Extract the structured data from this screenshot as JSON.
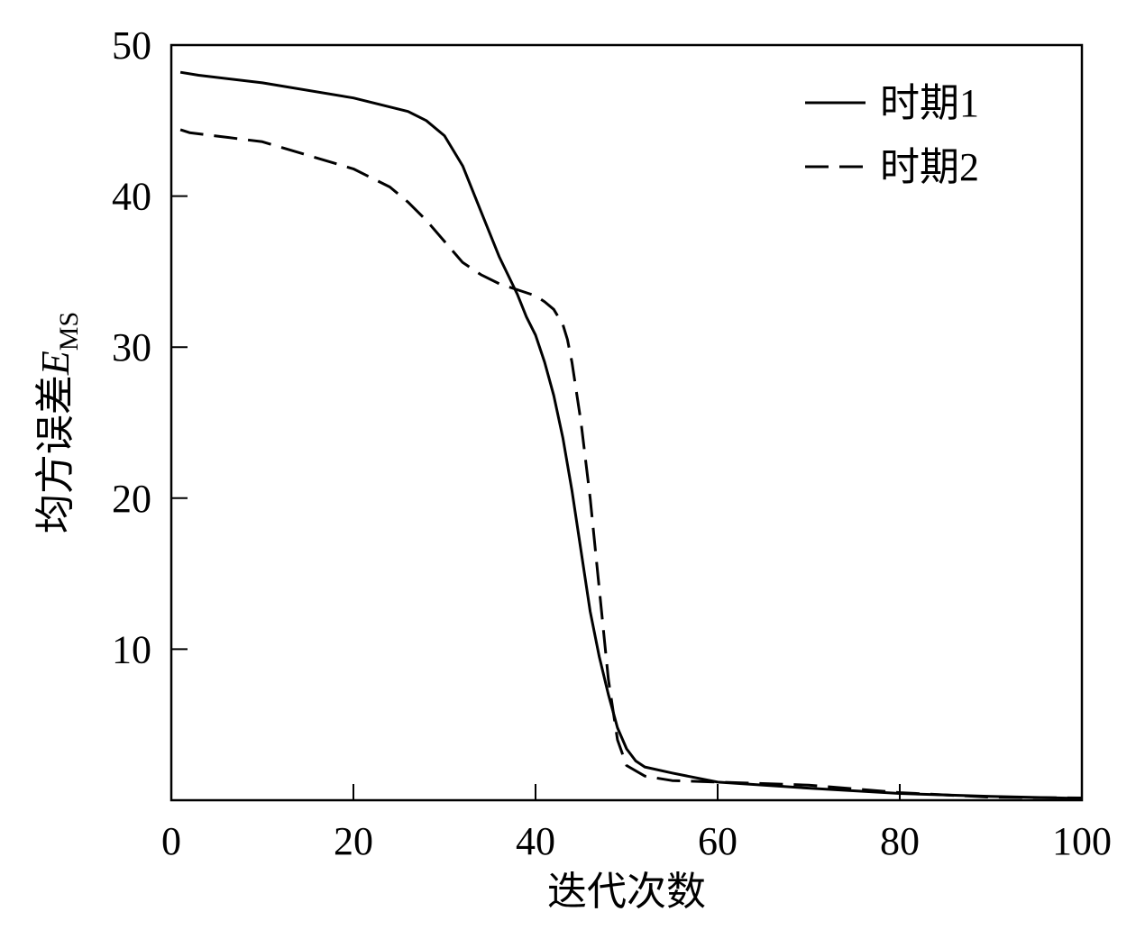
{
  "chart_data": {
    "type": "line",
    "xlabel": "迭代次数",
    "ylabel": {
      "main": "均方误差",
      "symbol": "E",
      "subscript": "MS"
    },
    "xlim": [
      0,
      100
    ],
    "ylim": [
      0,
      50
    ],
    "x_ticks": [
      "0",
      "20",
      "40",
      "60",
      "80",
      "100"
    ],
    "y_ticks": [
      "10",
      "20",
      "30",
      "40",
      "50"
    ],
    "grid": false,
    "legend_position": "top-right",
    "series": [
      {
        "name": "时期1",
        "style": "solid",
        "color": "#000000",
        "points": [
          [
            1,
            48.2
          ],
          [
            3,
            48.0
          ],
          [
            10,
            47.5
          ],
          [
            20,
            46.5
          ],
          [
            26,
            45.6
          ],
          [
            28,
            45.0
          ],
          [
            30,
            44.0
          ],
          [
            32,
            42.0
          ],
          [
            34,
            39.0
          ],
          [
            36,
            36.0
          ],
          [
            38,
            33.5
          ],
          [
            39,
            32.0
          ],
          [
            40,
            30.8
          ],
          [
            41,
            29.0
          ],
          [
            42,
            26.8
          ],
          [
            43,
            24.0
          ],
          [
            44,
            20.5
          ],
          [
            45,
            16.5
          ],
          [
            46,
            12.5
          ],
          [
            47,
            9.5
          ],
          [
            48,
            7.0
          ],
          [
            49,
            4.8
          ],
          [
            50,
            3.4
          ],
          [
            51,
            2.6
          ],
          [
            52,
            2.2
          ],
          [
            55,
            1.8
          ],
          [
            60,
            1.2
          ],
          [
            70,
            0.8
          ],
          [
            80,
            0.45
          ],
          [
            90,
            0.25
          ],
          [
            100,
            0.12
          ]
        ]
      },
      {
        "name": "时期2",
        "style": "dashed",
        "color": "#000000",
        "points": [
          [
            1,
            44.4
          ],
          [
            2,
            44.2
          ],
          [
            10,
            43.6
          ],
          [
            20,
            41.8
          ],
          [
            24,
            40.6
          ],
          [
            26,
            39.6
          ],
          [
            28,
            38.4
          ],
          [
            30,
            37.0
          ],
          [
            32,
            35.6
          ],
          [
            34,
            34.8
          ],
          [
            36,
            34.2
          ],
          [
            38,
            33.8
          ],
          [
            40,
            33.4
          ],
          [
            41,
            33.0
          ],
          [
            42,
            32.5
          ],
          [
            43,
            31.5
          ],
          [
            43.5,
            30.5
          ],
          [
            44,
            29.0
          ],
          [
            45,
            25.0
          ],
          [
            46,
            20.0
          ],
          [
            47,
            14.0
          ],
          [
            48,
            8.0
          ],
          [
            49,
            4.0
          ],
          [
            50,
            2.3
          ],
          [
            52,
            1.6
          ],
          [
            55,
            1.3
          ],
          [
            60,
            1.2
          ],
          [
            70,
            1.0
          ],
          [
            80,
            0.5
          ],
          [
            90,
            0.2
          ],
          [
            100,
            0.15
          ]
        ]
      }
    ]
  }
}
